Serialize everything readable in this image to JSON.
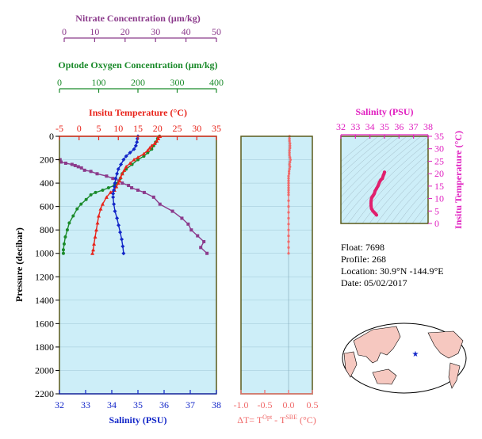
{
  "colors": {
    "nitrate": "#8b3a8b",
    "oxygen": "#1a8a2a",
    "temperature": "#e8231a",
    "salinity": "#1226c8",
    "delta": "#f06a6a",
    "ts_axis": "#e020c0",
    "plot_bg": "#cdeef8",
    "axis_dark": "#5a5a1a",
    "land": "#f6c8c0",
    "ocean": "#ffffff"
  },
  "axes": {
    "nitrate": {
      "title": "Nitrate Concentration (μm/kg)",
      "ticks": [
        "0",
        "10",
        "20",
        "30",
        "40",
        "50"
      ]
    },
    "oxygen": {
      "title": "Optode Oxygen Concentration (μm/kg)",
      "ticks": [
        "0",
        "100",
        "200",
        "300",
        "400"
      ]
    },
    "temperature": {
      "title": "Insitu Temperature (°C)",
      "ticks": [
        "-5",
        "0",
        "5",
        "10",
        "15",
        "20",
        "25",
        "30",
        "35"
      ]
    },
    "salinity": {
      "title": "Salinity (PSU)",
      "ticks": [
        "32",
        "33",
        "34",
        "35",
        "36",
        "37",
        "38"
      ]
    },
    "pressure": {
      "title": "Pressure (decibar)",
      "ticks": [
        "0",
        "200",
        "400",
        "600",
        "800",
        "1000",
        "1200",
        "1400",
        "1600",
        "1800",
        "2000",
        "2200"
      ]
    },
    "delta": {
      "title": "ΔT= T",
      "sup1": "Opt",
      "mid": " - T",
      "sup2": "SBE",
      "unit": " (°C)",
      "ticks": [
        "-1.0",
        "-0.5",
        "0.0",
        "0.5"
      ]
    },
    "ts_salinity": {
      "title": "Salinity (PSU)",
      "ticks": [
        "32",
        "33",
        "34",
        "35",
        "36",
        "37",
        "38"
      ]
    },
    "ts_temperature": {
      "title": "Insitu Temperature (°C)",
      "ticks": [
        "0",
        "5",
        "10",
        "15",
        "20",
        "25",
        "30",
        "35"
      ]
    }
  },
  "info": {
    "float": "Float:  7698",
    "profile": "Profile:  268",
    "location": "Location:  30.9°N  -144.9°E",
    "date": "Date:  05/02/2017"
  },
  "chart_data": [
    {
      "type": "line",
      "name": "depth profiles",
      "y_axis": "pressure",
      "ylim": [
        2200,
        0
      ],
      "series": [
        {
          "name": "Nitrate",
          "xlim": [
            0,
            50
          ],
          "points": [
            [
              0.2,
              200
            ],
            [
              0.5,
              220
            ],
            [
              2,
              230
            ],
            [
              4,
              240
            ],
            [
              5,
              250
            ],
            [
              6,
              260
            ],
            [
              7,
              270
            ],
            [
              8,
              290
            ],
            [
              10,
              300
            ],
            [
              12,
              320
            ],
            [
              15,
              340
            ],
            [
              17,
              360
            ],
            [
              19,
              380
            ],
            [
              20,
              400
            ],
            [
              22,
              420
            ],
            [
              23,
              440
            ],
            [
              25,
              460
            ],
            [
              27,
              480
            ],
            [
              30,
              520
            ],
            [
              32,
              580
            ],
            [
              36,
              640
            ],
            [
              39,
              700
            ],
            [
              41,
              750
            ],
            [
              42,
              800
            ],
            [
              44,
              850
            ],
            [
              46,
              900
            ],
            [
              45,
              950
            ],
            [
              47,
              1000
            ]
          ]
        },
        {
          "name": "Oxygen",
          "xlim": [
            0,
            400
          ],
          "points": [
            [
              255,
              0
            ],
            [
              250,
              20
            ],
            [
              245,
              50
            ],
            [
              240,
              80
            ],
            [
              235,
              110
            ],
            [
              225,
              140
            ],
            [
              215,
              170
            ],
            [
              200,
              200
            ],
            [
              185,
              240
            ],
            [
              170,
              280
            ],
            [
              160,
              320
            ],
            [
              155,
              360
            ],
            [
              148,
              400
            ],
            [
              140,
              420
            ],
            [
              125,
              440
            ],
            [
              110,
              460
            ],
            [
              92,
              480
            ],
            [
              80,
              500
            ],
            [
              68,
              540
            ],
            [
              55,
              580
            ],
            [
              45,
              620
            ],
            [
              35,
              680
            ],
            [
              25,
              740
            ],
            [
              20,
              800
            ],
            [
              15,
              860
            ],
            [
              12,
              920
            ],
            [
              10,
              970
            ],
            [
              10,
              1000
            ]
          ]
        },
        {
          "name": "Temperature",
          "xlim": [
            -5,
            35
          ],
          "points": [
            [
              20.6,
              0
            ],
            [
              20.2,
              20
            ],
            [
              19.8,
              40
            ],
            [
              19.3,
              60
            ],
            [
              18.5,
              80
            ],
            [
              18,
              100
            ],
            [
              17.5,
              120
            ],
            [
              16.5,
              150
            ],
            [
              15,
              180
            ],
            [
              14,
              200
            ],
            [
              13,
              230
            ],
            [
              12,
              260
            ],
            [
              11.5,
              290
            ],
            [
              11,
              320
            ],
            [
              10.6,
              350
            ],
            [
              10.3,
              380
            ],
            [
              10,
              400
            ],
            [
              9.5,
              430
            ],
            [
              9,
              460
            ],
            [
              8,
              480
            ],
            [
              7,
              520
            ],
            [
              6,
              580
            ],
            [
              5.5,
              620
            ],
            [
              5,
              680
            ],
            [
              4.7,
              740
            ],
            [
              4.4,
              800
            ],
            [
              4.1,
              860
            ],
            [
              3.8,
              920
            ],
            [
              3.6,
              970
            ],
            [
              3.4,
              1000
            ]
          ]
        },
        {
          "name": "Salinity",
          "xlim": [
            32,
            38
          ],
          "points": [
            [
              35.0,
              0
            ],
            [
              34.98,
              20
            ],
            [
              34.96,
              50
            ],
            [
              34.92,
              80
            ],
            [
              34.85,
              110
            ],
            [
              34.7,
              140
            ],
            [
              34.55,
              170
            ],
            [
              34.45,
              200
            ],
            [
              34.35,
              240
            ],
            [
              34.25,
              280
            ],
            [
              34.2,
              320
            ],
            [
              34.15,
              360
            ],
            [
              34.12,
              400
            ],
            [
              34.1,
              430
            ],
            [
              34.08,
              460
            ],
            [
              34.05,
              490
            ],
            [
              34.05,
              520
            ],
            [
              34.08,
              580
            ],
            [
              34.12,
              640
            ],
            [
              34.2,
              700
            ],
            [
              34.26,
              760
            ],
            [
              34.32,
              820
            ],
            [
              34.38,
              880
            ],
            [
              34.42,
              940
            ],
            [
              34.45,
              1000
            ]
          ]
        }
      ]
    },
    {
      "type": "scatter",
      "name": "temperature difference",
      "xlim": [
        -1.0,
        0.5
      ],
      "ylim": [
        2200,
        0
      ],
      "points": [
        [
          0.02,
          0
        ],
        [
          0.02,
          20
        ],
        [
          0.02,
          40
        ],
        [
          0.03,
          60
        ],
        [
          0.03,
          80
        ],
        [
          0.03,
          100
        ],
        [
          0.02,
          120
        ],
        [
          0.02,
          140
        ],
        [
          0.02,
          160
        ],
        [
          0.03,
          180
        ],
        [
          0.04,
          200
        ],
        [
          0.03,
          220
        ],
        [
          0.02,
          240
        ],
        [
          0.03,
          260
        ],
        [
          0.02,
          280
        ],
        [
          0.01,
          300
        ],
        [
          0.01,
          320
        ],
        [
          0.0,
          340
        ],
        [
          0.0,
          360
        ],
        [
          0.0,
          380
        ],
        [
          0.0,
          400
        ],
        [
          0.0,
          420
        ],
        [
          0.0,
          440
        ],
        [
          0.0,
          460
        ],
        [
          0.0,
          480
        ],
        [
          0.0,
          500
        ],
        [
          0.0,
          550
        ],
        [
          0.0,
          600
        ],
        [
          0.0,
          650
        ],
        [
          0.0,
          700
        ],
        [
          0.0,
          750
        ],
        [
          0.0,
          800
        ],
        [
          0.0,
          850
        ],
        [
          0.0,
          900
        ],
        [
          0.0,
          950
        ],
        [
          0.0,
          1000
        ]
      ]
    },
    {
      "type": "scatter",
      "name": "T-S diagram",
      "xlim": [
        32,
        38
      ],
      "ylim": [
        0,
        35
      ],
      "points": [
        [
          34.45,
          3.4
        ],
        [
          34.4,
          3.8
        ],
        [
          34.35,
          4.1
        ],
        [
          34.3,
          4.4
        ],
        [
          34.25,
          4.7
        ],
        [
          34.2,
          5
        ],
        [
          34.15,
          5.5
        ],
        [
          34.1,
          6
        ],
        [
          34.08,
          7
        ],
        [
          34.07,
          8
        ],
        [
          34.08,
          9
        ],
        [
          34.1,
          10
        ],
        [
          34.12,
          10.3
        ],
        [
          34.15,
          10.6
        ],
        [
          34.2,
          11
        ],
        [
          34.25,
          11.5
        ],
        [
          34.3,
          12
        ],
        [
          34.35,
          13
        ],
        [
          34.45,
          14
        ],
        [
          34.55,
          15
        ],
        [
          34.65,
          16.5
        ],
        [
          34.75,
          17.5
        ],
        [
          34.85,
          18
        ],
        [
          34.92,
          19.3
        ],
        [
          34.96,
          19.8
        ],
        [
          35.0,
          20.6
        ]
      ]
    }
  ]
}
